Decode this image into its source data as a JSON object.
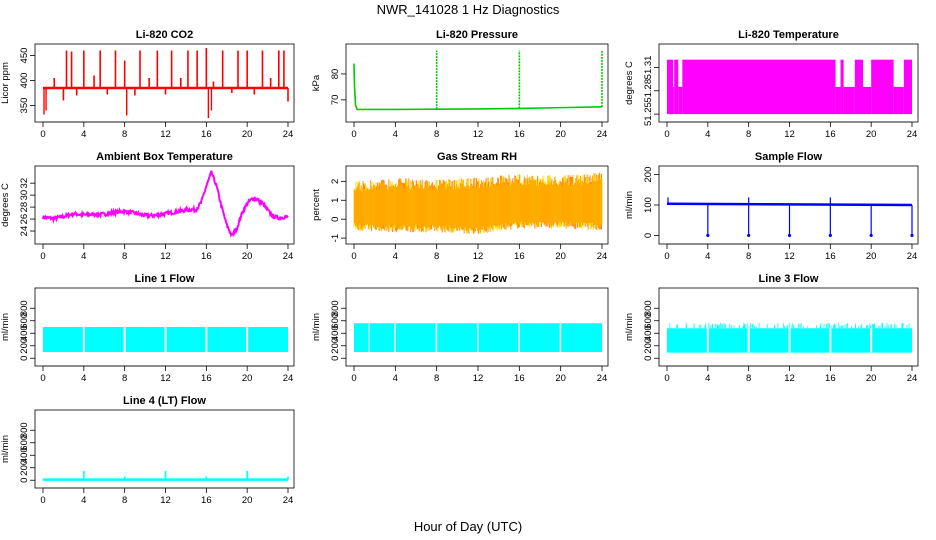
{
  "title": "NWR_141028  1 Hz Diagnostics",
  "xlabel": "Hour of Day (UTC)",
  "chart_data": [
    {
      "id": "co2",
      "type": "line",
      "title": "Li-820 CO2",
      "ylabel": "Licor ppm",
      "color": "#ff0000",
      "xlim": [
        0,
        24
      ],
      "ylim": [
        325,
        465
      ],
      "yticks": [
        350,
        400,
        450
      ],
      "xticks": [
        0,
        4,
        8,
        12,
        16,
        20,
        24
      ],
      "series": [
        {
          "baseline": 385,
          "x": [
            0,
            1.1,
            2,
            2.3,
            2.8,
            3.3,
            4.0,
            5.0,
            5.6,
            6.3,
            7.1,
            8.0,
            9.0,
            9.5,
            10.4,
            11.2,
            12.0,
            12.6,
            13.5,
            14.2,
            15.1,
            16.0,
            16.7,
            17.6,
            18.5,
            19.1,
            20.0,
            20.7,
            21.5,
            22.3,
            23.1,
            23.6,
            24.0
          ],
          "y": [
            385,
            405,
            360,
            460,
            458,
            370,
            460,
            410,
            460,
            372,
            460,
            440,
            370,
            460,
            405,
            460,
            372,
            460,
            405,
            460,
            460,
            465,
            398,
            460,
            375,
            460,
            460,
            372,
            460,
            405,
            460,
            460,
            358
          ],
          "dips": [
            [
              0.1,
              332
            ],
            [
              0.3,
              340
            ],
            [
              8.2,
              330
            ],
            [
              16.2,
              325
            ],
            [
              16.5,
              340
            ]
          ]
        }
      ]
    },
    {
      "id": "pressure",
      "type": "line",
      "title": "Li-820 Pressure",
      "ylabel": "kPa",
      "color": "#00cc00",
      "xlim": [
        0,
        24
      ],
      "ylim": [
        63,
        90
      ],
      "yticks": [
        70,
        80
      ],
      "xticks": [
        0,
        4,
        8,
        12,
        16,
        20,
        24
      ],
      "series": [
        {
          "x": [
            0,
            0.05,
            0.15,
            0.3,
            4,
            8,
            12,
            16,
            20,
            24
          ],
          "y": [
            84,
            75,
            68,
            66.3,
            66.3,
            66.4,
            66.5,
            66.7,
            67.0,
            67.3
          ],
          "spikes": [
            [
              8,
              89
            ],
            [
              16,
              89
            ],
            [
              24,
              89
            ]
          ]
        }
      ]
    },
    {
      "id": "li820temp",
      "type": "area",
      "title": "Li-820 Temperature",
      "ylabel": "degrees C",
      "color": "#ff00ff",
      "xlim": [
        0,
        24
      ],
      "ylim": [
        51.245,
        51.335
      ],
      "yticks": [
        51.25,
        51.28,
        51.31
      ],
      "xticks": [
        0,
        4,
        8,
        12,
        16,
        20,
        24
      ],
      "series": [
        {
          "low": 51.25,
          "high": 51.32,
          "gaps": [
            [
              0.6,
              0.7
            ],
            [
              1.1,
              1.5
            ],
            [
              16.5,
              17.0
            ],
            [
              17.3,
              18.4
            ],
            [
              19.2,
              20.0
            ],
            [
              22.2,
              23.2
            ]
          ]
        }
      ]
    },
    {
      "id": "ambient",
      "type": "line",
      "title": "Ambient Box Temperature",
      "ylabel": "degrees C",
      "color": "#ff00ff",
      "xlim": [
        0,
        24
      ],
      "ylim": [
        22.5,
        34.2
      ],
      "yticks": [
        24,
        26,
        28,
        30,
        32
      ],
      "xticks": [
        0,
        4,
        8,
        12,
        16,
        20,
        24
      ],
      "series": [
        {
          "x": [
            0,
            1,
            2,
            3,
            4,
            5,
            6,
            7,
            8,
            9,
            10,
            11,
            12,
            13,
            14,
            15,
            15.5,
            16,
            16.5,
            17,
            17.5,
            18,
            18.5,
            19,
            19.5,
            20,
            20.5,
            21,
            21.5,
            22,
            22.5,
            23,
            24
          ],
          "y": [
            26.3,
            26.1,
            26.4,
            26.9,
            26.7,
            26.8,
            26.8,
            27.1,
            27.3,
            27.0,
            26.6,
            26.6,
            26.9,
            27.2,
            27.5,
            27.6,
            28.8,
            31.5,
            33.8,
            31.5,
            28.0,
            25.0,
            23.2,
            24.5,
            27.0,
            28.6,
            29.4,
            29.3,
            28.6,
            27.5,
            26.5,
            26.2,
            26.4
          ]
        }
      ]
    },
    {
      "id": "rh",
      "type": "area",
      "title": "Gas Stream RH",
      "ylabel": "percent",
      "color": "#ff7f00",
      "color2": "#ffd700",
      "xlim": [
        0,
        24
      ],
      "ylim": [
        -1.1,
        2.6
      ],
      "yticks": [
        -1,
        0,
        1,
        2
      ],
      "xticks": [
        0,
        4,
        8,
        12,
        16,
        20,
        24
      ],
      "series": [
        {
          "x": [
            0,
            4,
            8,
            12,
            16,
            20,
            24
          ],
          "low": [
            -0.6,
            -0.7,
            -0.7,
            -0.8,
            -0.5,
            -0.5,
            -0.6
          ],
          "high": [
            2.0,
            2.2,
            2.1,
            2.2,
            2.4,
            2.3,
            2.5
          ]
        }
      ]
    },
    {
      "id": "sampleflow",
      "type": "line",
      "title": "Sample Flow",
      "ylabel": "ml/min",
      "color": "#0000ff",
      "xlim": [
        0,
        24
      ],
      "ylim": [
        -15,
        215
      ],
      "yticks": [
        0,
        100,
        200
      ],
      "xticks": [
        0,
        4,
        8,
        12,
        16,
        20,
        24
      ],
      "series": [
        {
          "x": [
            0,
            24
          ],
          "y": [
            104,
            100
          ],
          "dips": [
            [
              4,
              0
            ],
            [
              8,
              0
            ],
            [
              12,
              0
            ],
            [
              16,
              0
            ],
            [
              20,
              0
            ],
            [
              24,
              0
            ]
          ],
          "spikes": [
            [
              0.1,
              125
            ],
            [
              8,
              125
            ],
            [
              16,
              125
            ]
          ]
        }
      ]
    },
    {
      "id": "line1",
      "type": "area",
      "title": "Line 1 Flow",
      "ylabel": "ml/min",
      "color": "#00ffff",
      "xlim": [
        0,
        24
      ],
      "ylim": [
        -60,
        1060
      ],
      "yticks": [
        0,
        200,
        400,
        600,
        800
      ],
      "xticks": [
        0,
        4,
        8,
        12,
        16,
        20,
        24
      ],
      "series": [
        {
          "low": 100,
          "high": 500,
          "gaps": [
            [
              3.9,
              4.1
            ],
            [
              7.9,
              8.1
            ],
            [
              11.9,
              12.1
            ],
            [
              15.9,
              16.1
            ],
            [
              19.9,
              20.1
            ]
          ],
          "end": 24
        }
      ]
    },
    {
      "id": "line2",
      "type": "area",
      "title": "Line 2 Flow",
      "ylabel": "ml/min",
      "color": "#00ffff",
      "xlim": [
        0,
        24
      ],
      "ylim": [
        -60,
        1060
      ],
      "yticks": [
        0,
        200,
        400,
        600,
        800
      ],
      "xticks": [
        0,
        4,
        8,
        12,
        16,
        20,
        24
      ],
      "series": [
        {
          "low": 100,
          "high": 560,
          "gaps": [
            [
              1.4,
              1.5
            ],
            [
              3.9,
              4.05
            ],
            [
              7.9,
              8.05
            ],
            [
              11.9,
              12.05
            ],
            [
              15.9,
              16.05
            ],
            [
              19.9,
              20.05
            ]
          ],
          "end": 24
        }
      ]
    },
    {
      "id": "line3",
      "type": "area",
      "title": "Line 3 Flow",
      "ylabel": "ml/min",
      "color": "#00ffff",
      "xlim": [
        0,
        24
      ],
      "ylim": [
        -60,
        1060
      ],
      "yticks": [
        0,
        200,
        400,
        600,
        800
      ],
      "xticks": [
        0,
        4,
        8,
        12,
        16,
        20,
        24
      ],
      "series": [
        {
          "low": 90,
          "high": 480,
          "gaps": [
            [
              3.9,
              4.1
            ],
            [
              7.9,
              8.1
            ],
            [
              11.9,
              12.1
            ],
            [
              15.9,
              16.1
            ],
            [
              19.9,
              20.1
            ]
          ],
          "end": 24
        }
      ]
    },
    {
      "id": "line4",
      "type": "line",
      "title": "Line 4 (LT) Flow",
      "ylabel": "ml/min",
      "color": "#00ffff",
      "xlim": [
        0,
        24
      ],
      "ylim": [
        -60,
        1060
      ],
      "yticks": [
        0,
        200,
        400,
        600,
        800
      ],
      "xticks": [
        0,
        4,
        8,
        12,
        16,
        20,
        24
      ],
      "series": [
        {
          "x": [
            0,
            24
          ],
          "y": [
            10,
            10
          ],
          "spikes": [
            [
              4,
              150
            ],
            [
              8,
              60
            ],
            [
              12,
              150
            ],
            [
              16,
              60
            ],
            [
              20,
              150
            ],
            [
              24,
              60
            ]
          ]
        }
      ]
    }
  ]
}
